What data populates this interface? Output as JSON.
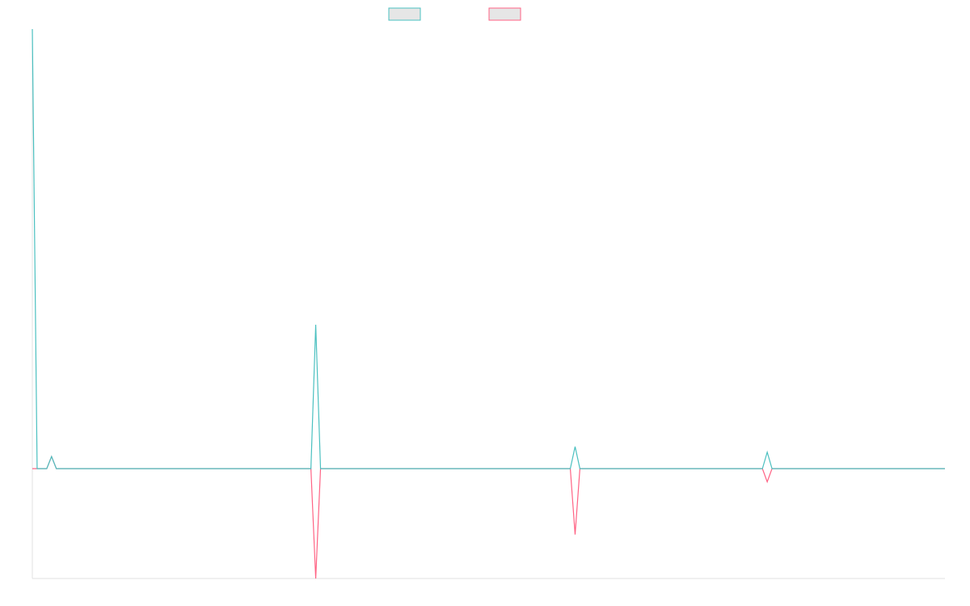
{
  "chart_data": {
    "type": "line",
    "legend_position": "top-center",
    "grid": false,
    "axes_visible": false,
    "x": [
      0,
      1,
      2,
      3,
      4,
      5,
      6,
      7,
      8,
      9,
      10,
      11,
      12,
      13,
      14,
      15,
      16,
      17,
      18,
      19,
      20,
      21,
      22,
      23,
      24,
      25,
      26,
      27,
      28,
      29,
      30,
      31,
      32,
      33,
      34,
      35,
      36,
      37,
      38,
      39,
      40,
      41,
      42,
      43,
      44,
      45,
      46,
      47,
      48,
      49,
      50,
      51,
      52,
      53,
      54,
      55,
      56,
      57,
      58,
      59,
      60,
      61,
      62,
      63,
      64,
      65,
      66,
      67,
      68,
      69,
      70,
      71,
      72,
      73,
      74,
      75,
      76,
      77,
      78,
      79,
      80,
      81,
      82,
      83,
      84,
      85,
      86,
      87,
      88,
      89,
      90,
      91,
      92,
      93,
      94,
      95,
      96,
      97,
      98,
      99,
      100,
      101,
      102,
      103,
      104,
      105,
      106,
      107,
      108,
      109,
      110,
      111,
      112,
      113,
      114,
      115,
      116,
      117,
      118,
      119,
      120,
      121,
      122,
      123,
      124,
      125,
      126,
      127,
      128,
      129,
      130,
      131,
      132,
      133,
      134,
      135,
      136,
      137,
      138,
      139,
      140,
      141,
      142,
      143,
      144,
      145,
      146,
      147,
      148,
      149,
      150,
      151,
      152,
      153,
      154,
      155,
      156,
      157,
      158,
      159,
      160,
      161,
      162,
      163,
      164,
      165,
      166,
      167,
      168,
      169,
      170,
      171,
      172,
      173,
      174,
      175,
      176,
      177,
      178,
      179,
      180,
      181,
      182,
      183,
      184,
      185,
      186,
      187,
      188,
      189,
      190
    ],
    "ylim": [
      -100,
      400
    ],
    "series": [
      {
        "name": "",
        "color": "#4bc0c0",
        "fill": "#e6e6e6",
        "spikes": {
          "0": 400,
          "4": 11,
          "59": 131,
          "113": 20,
          "153": 15
        }
      },
      {
        "name": "",
        "color": "#ff6384",
        "fill": "#e6e6e6",
        "spikes": {
          "4": 11,
          "59": -100,
          "113": -60,
          "153": -12
        }
      }
    ]
  }
}
